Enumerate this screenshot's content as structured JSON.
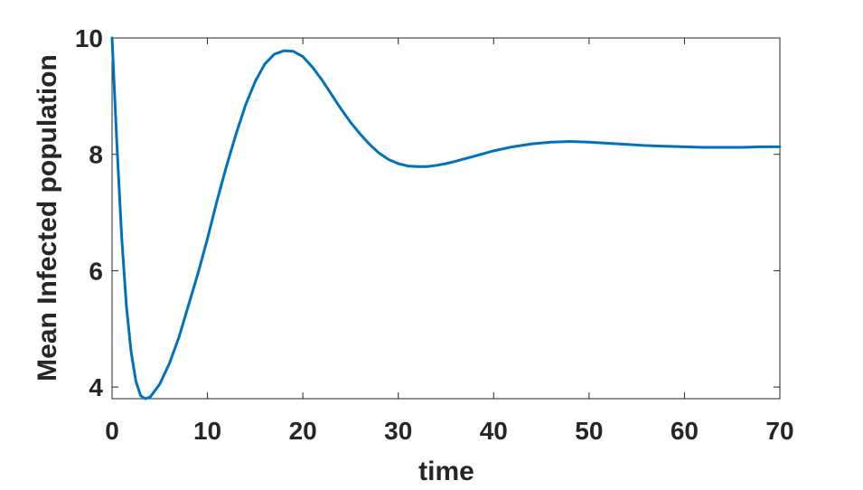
{
  "chart_data": {
    "type": "line",
    "x_label": "time",
    "y_label": "Mean Infected population",
    "x": [
      0,
      0.5,
      1,
      1.5,
      2,
      2.5,
      3,
      3.5,
      4,
      5,
      6,
      7,
      8,
      9,
      10,
      11,
      12,
      13,
      14,
      15,
      16,
      17,
      18,
      19,
      20,
      21,
      22,
      23,
      24,
      25,
      26,
      27,
      28,
      29,
      30,
      31,
      32,
      33,
      34,
      35,
      36,
      38,
      40,
      42,
      44,
      46,
      48,
      50,
      52,
      54,
      56,
      58,
      60,
      62,
      64,
      66,
      68,
      70
    ],
    "values": [
      10,
      8.2,
      6.6,
      5.4,
      4.6,
      4.1,
      3.85,
      3.8,
      3.83,
      4.05,
      4.4,
      4.85,
      5.4,
      5.95,
      6.55,
      7.2,
      7.8,
      8.35,
      8.85,
      9.25,
      9.55,
      9.72,
      9.78,
      9.77,
      9.68,
      9.5,
      9.28,
      9.03,
      8.78,
      8.55,
      8.35,
      8.17,
      8.02,
      7.91,
      7.84,
      7.8,
      7.79,
      7.79,
      7.81,
      7.84,
      7.88,
      7.97,
      8.06,
      8.13,
      8.18,
      8.21,
      8.22,
      8.21,
      8.19,
      8.17,
      8.15,
      8.14,
      8.13,
      8.12,
      8.12,
      8.12,
      8.13,
      8.13
    ],
    "color": "#0072bd",
    "xlim": [
      0,
      70
    ],
    "ylim": [
      3.8,
      10
    ],
    "xticks": [
      0,
      10,
      20,
      30,
      40,
      50,
      60,
      70
    ],
    "yticks": [
      4,
      6,
      8,
      10
    ]
  }
}
